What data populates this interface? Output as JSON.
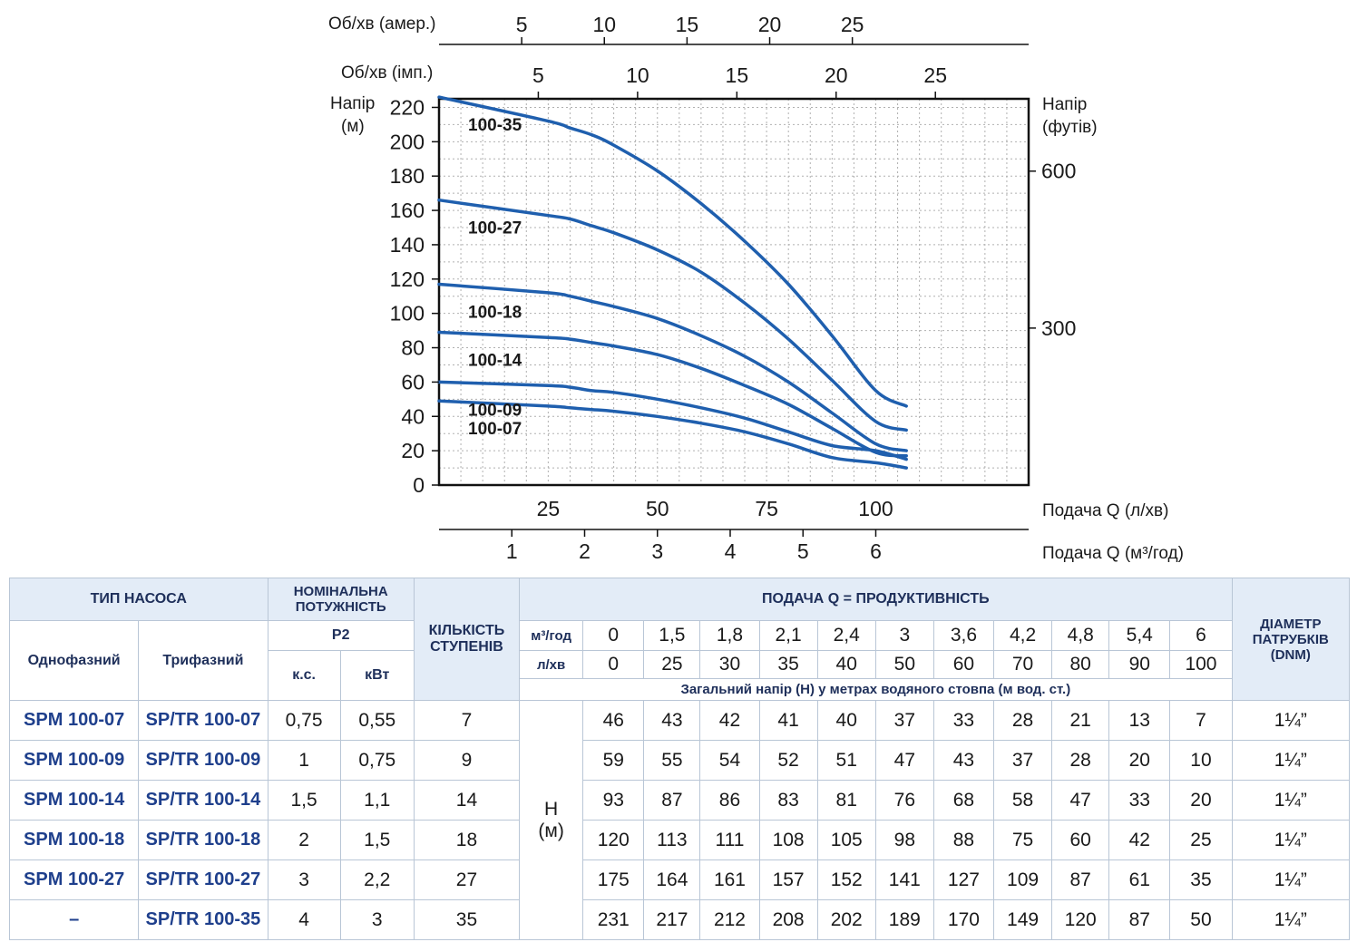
{
  "chart_data": {
    "type": "line",
    "x_axis_primary": {
      "label": "Подача Q (л/хв)",
      "ticks": [
        "25",
        "50",
        "75",
        "100"
      ],
      "range": [
        0,
        135
      ]
    },
    "x_axis_secondary": {
      "label": "Подача Q (м³/год)",
      "ticks": [
        "1",
        "2",
        "3",
        "4",
        "5",
        "6"
      ]
    },
    "top_axis_1": {
      "label": "Об/хв (амер.)",
      "ticks": [
        "5",
        "10",
        "15",
        "20",
        "25"
      ]
    },
    "top_axis_2": {
      "label": "Об/хв (імп.)",
      "ticks": [
        "5",
        "10",
        "15",
        "20",
        "25"
      ]
    },
    "y_axis_left": {
      "label_line1": "Напір",
      "label_line2": "(м)",
      "ticks": [
        "0",
        "20",
        "40",
        "60",
        "80",
        "100",
        "120",
        "140",
        "160",
        "180",
        "200",
        "220"
      ],
      "range": [
        0,
        225
      ]
    },
    "y_axis_right": {
      "label_line1": "Напір",
      "label_line2": "(футів)",
      "ticks": [
        "300",
        "600"
      ]
    },
    "grid": true,
    "series": [
      {
        "name": "100-35",
        "x": [
          0,
          25,
          30,
          35,
          40,
          50,
          60,
          70,
          80,
          90,
          100,
          107
        ],
        "y": [
          226,
          212,
          208,
          204,
          198,
          183,
          164,
          142,
          117,
          87,
          55,
          46
        ]
      },
      {
        "name": "100-27",
        "x": [
          0,
          25,
          30,
          35,
          40,
          50,
          60,
          70,
          80,
          90,
          100,
          107
        ],
        "y": [
          166,
          157,
          155,
          151,
          147,
          137,
          124,
          106,
          85,
          61,
          37,
          32
        ]
      },
      {
        "name": "100-18",
        "x": [
          0,
          25,
          30,
          35,
          40,
          50,
          60,
          70,
          80,
          90,
          100,
          107
        ],
        "y": [
          117,
          112,
          110,
          107,
          104,
          97,
          87,
          75,
          60,
          42,
          24,
          20
        ]
      },
      {
        "name": "100-14",
        "x": [
          0,
          25,
          30,
          35,
          40,
          50,
          60,
          70,
          80,
          90,
          100,
          107
        ],
        "y": [
          89,
          86,
          85,
          83,
          81,
          76,
          68,
          58,
          47,
          33,
          19,
          17
        ]
      },
      {
        "name": "100-09",
        "x": [
          0,
          25,
          30,
          35,
          40,
          50,
          60,
          70,
          80,
          90,
          100,
          107
        ],
        "y": [
          60,
          58,
          57,
          55,
          54,
          50,
          45,
          39,
          31,
          23,
          20,
          15
        ]
      },
      {
        "name": "100-07",
        "x": [
          0,
          25,
          30,
          35,
          40,
          50,
          60,
          70,
          80,
          90,
          100,
          107
        ],
        "y": [
          49,
          46,
          45,
          44,
          43,
          40,
          36,
          31,
          24,
          16,
          13,
          10
        ]
      }
    ],
    "series_color": "#1f5fae"
  },
  "table": {
    "h_type": "ТИП НАСОСА",
    "h_power_1": "НОМІНАЛЬНА",
    "h_power_2": "ПОТУЖНІСТЬ",
    "h_stages_1": "КІЛЬКІСТЬ",
    "h_stages_2": "СТУПЕНІВ",
    "h_flow": "ПОДАЧА Q = ПРОДУКТИВНІСТЬ",
    "h_diam_1": "ДІАМЕТР",
    "h_diam_2": "ПАТРУБКІВ",
    "h_diam_3": "(DNM)",
    "h_single": "Однофазний",
    "h_three": "Трифазний",
    "h_p2": "P2",
    "h_hp": "к.с.",
    "h_kw": "кВт",
    "unit_m3h": "м³/год",
    "unit_lmin": "л/хв",
    "flow_m3h": [
      "0",
      "1,5",
      "1,8",
      "2,1",
      "2,4",
      "3",
      "3,6",
      "4,2",
      "4,8",
      "5,4",
      "6"
    ],
    "flow_lmin": [
      "0",
      "25",
      "30",
      "35",
      "40",
      "50",
      "60",
      "70",
      "80",
      "90",
      "100"
    ],
    "head_note": "Загальний напір (Н) у метрах водяного стовпа (м вод. ст.)",
    "h_label_1": "Н",
    "h_label_2": "(м)",
    "rows": [
      {
        "single": "SPM 100-07",
        "three": "SP/TR 100-07",
        "hp": "0,75",
        "kw": "0,55",
        "stages": "7",
        "heads": [
          "46",
          "43",
          "42",
          "41",
          "40",
          "37",
          "33",
          "28",
          "21",
          "13",
          "7"
        ],
        "diam": "1¼”"
      },
      {
        "single": "SPM 100-09",
        "three": "SP/TR 100-09",
        "hp": "1",
        "kw": "0,75",
        "stages": "9",
        "heads": [
          "59",
          "55",
          "54",
          "52",
          "51",
          "47",
          "43",
          "37",
          "28",
          "20",
          "10"
        ],
        "diam": "1¼”"
      },
      {
        "single": "SPM 100-14",
        "three": "SP/TR 100-14",
        "hp": "1,5",
        "kw": "1,1",
        "stages": "14",
        "heads": [
          "93",
          "87",
          "86",
          "83",
          "81",
          "76",
          "68",
          "58",
          "47",
          "33",
          "20"
        ],
        "diam": "1¼”"
      },
      {
        "single": "SPM 100-18",
        "three": "SP/TR 100-18",
        "hp": "2",
        "kw": "1,5",
        "stages": "18",
        "heads": [
          "120",
          "113",
          "111",
          "108",
          "105",
          "98",
          "88",
          "75",
          "60",
          "42",
          "25"
        ],
        "diam": "1¼”"
      },
      {
        "single": "SPM 100-27",
        "three": "SP/TR 100-27",
        "hp": "3",
        "kw": "2,2",
        "stages": "27",
        "heads": [
          "175",
          "164",
          "161",
          "157",
          "152",
          "141",
          "127",
          "109",
          "87",
          "61",
          "35"
        ],
        "diam": "1¼”"
      },
      {
        "single": "–",
        "three": "SP/TR 100-35",
        "hp": "4",
        "kw": "3",
        "stages": "35",
        "heads": [
          "231",
          "217",
          "212",
          "208",
          "202",
          "189",
          "170",
          "149",
          "120",
          "87",
          "50"
        ],
        "diam": "1¼”"
      }
    ]
  }
}
